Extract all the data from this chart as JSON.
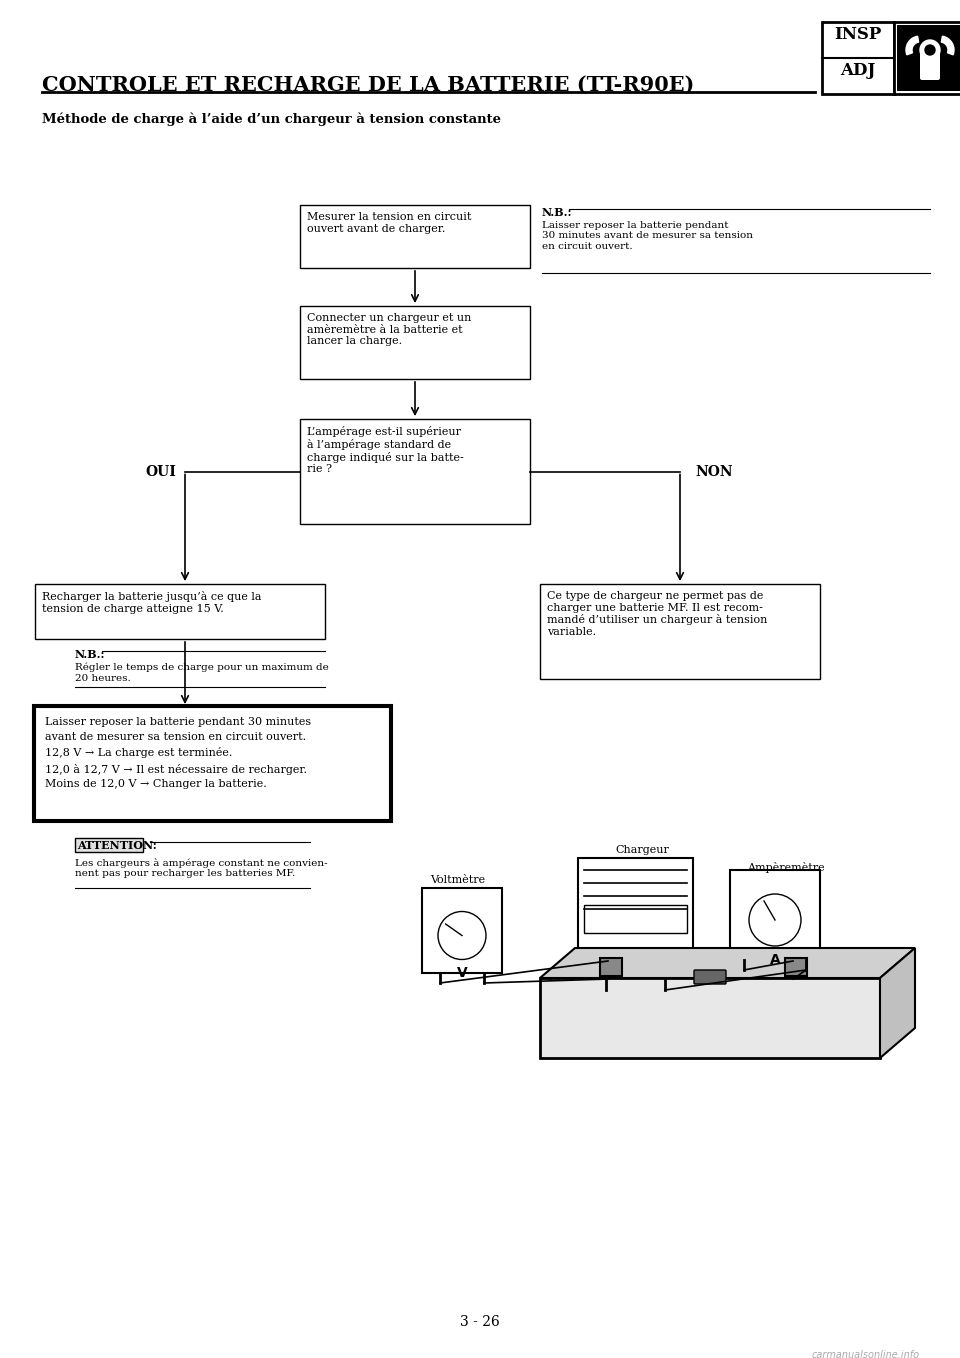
{
  "title": "CONTROLE ET RECHARGE DE LA BATTERIE (TT-R90E)",
  "subtitle": "Méthode de charge à l’aide d’un chargeur à tension constante",
  "page_number": "3 - 26",
  "box1_text": "Mesurer la tension en circuit\nouvert avant de charger.",
  "nb1_title": "N.B.:",
  "nb1_text": "Laisser reposer la batterie pendant\n30 minutes avant de mesurer sa tension\nen circuit ouvert.",
  "box2_text": "Connecter un chargeur et un\namèremètre à la batterie et\nlancer la charge.",
  "box3_text": "L’ampérage est-il supérieur\nà l’ampérage standard de\ncharge indiqué sur la batte-\nrie ?",
  "oui_label": "OUI",
  "non_label": "NON",
  "box_oui_text": "Recharger la batterie jusqu’à ce que la\ntension de charge atteigne 15 V.",
  "nb2_title": "N.B.:",
  "nb2_text": "Régler le temps de charge pour un maximum de\n20 heures.",
  "box_non_text": "Ce type de chargeur ne permet pas de\ncharger une batterie MF. Il est recom-\nmandé d’utiliser un chargeur à tension\nvariable.",
  "box_final_text": "Laisser reposer la batterie pendant 30 minutes\navant de mesurer sa tension en circuit ouvert.\n12,8 V → La charge est terminée.\n12,0 à 12,7 V → Il est nécessaire de recharger.\nMoins de 12,0 V → Changer la batterie.",
  "attention_label": "ATTENTION:",
  "attention_text": "Les chargeurs à ampérage constant ne convien-\nnent pas pour recharger les batteries MF.",
  "voltmetre_label": "Voltmètre",
  "chargeur_label": "Chargeur",
  "amperemetre_label": "Ampèremètre",
  "watermark": "carmanualsonline.info",
  "bg_color": "#ffffff",
  "text_color": "#000000"
}
